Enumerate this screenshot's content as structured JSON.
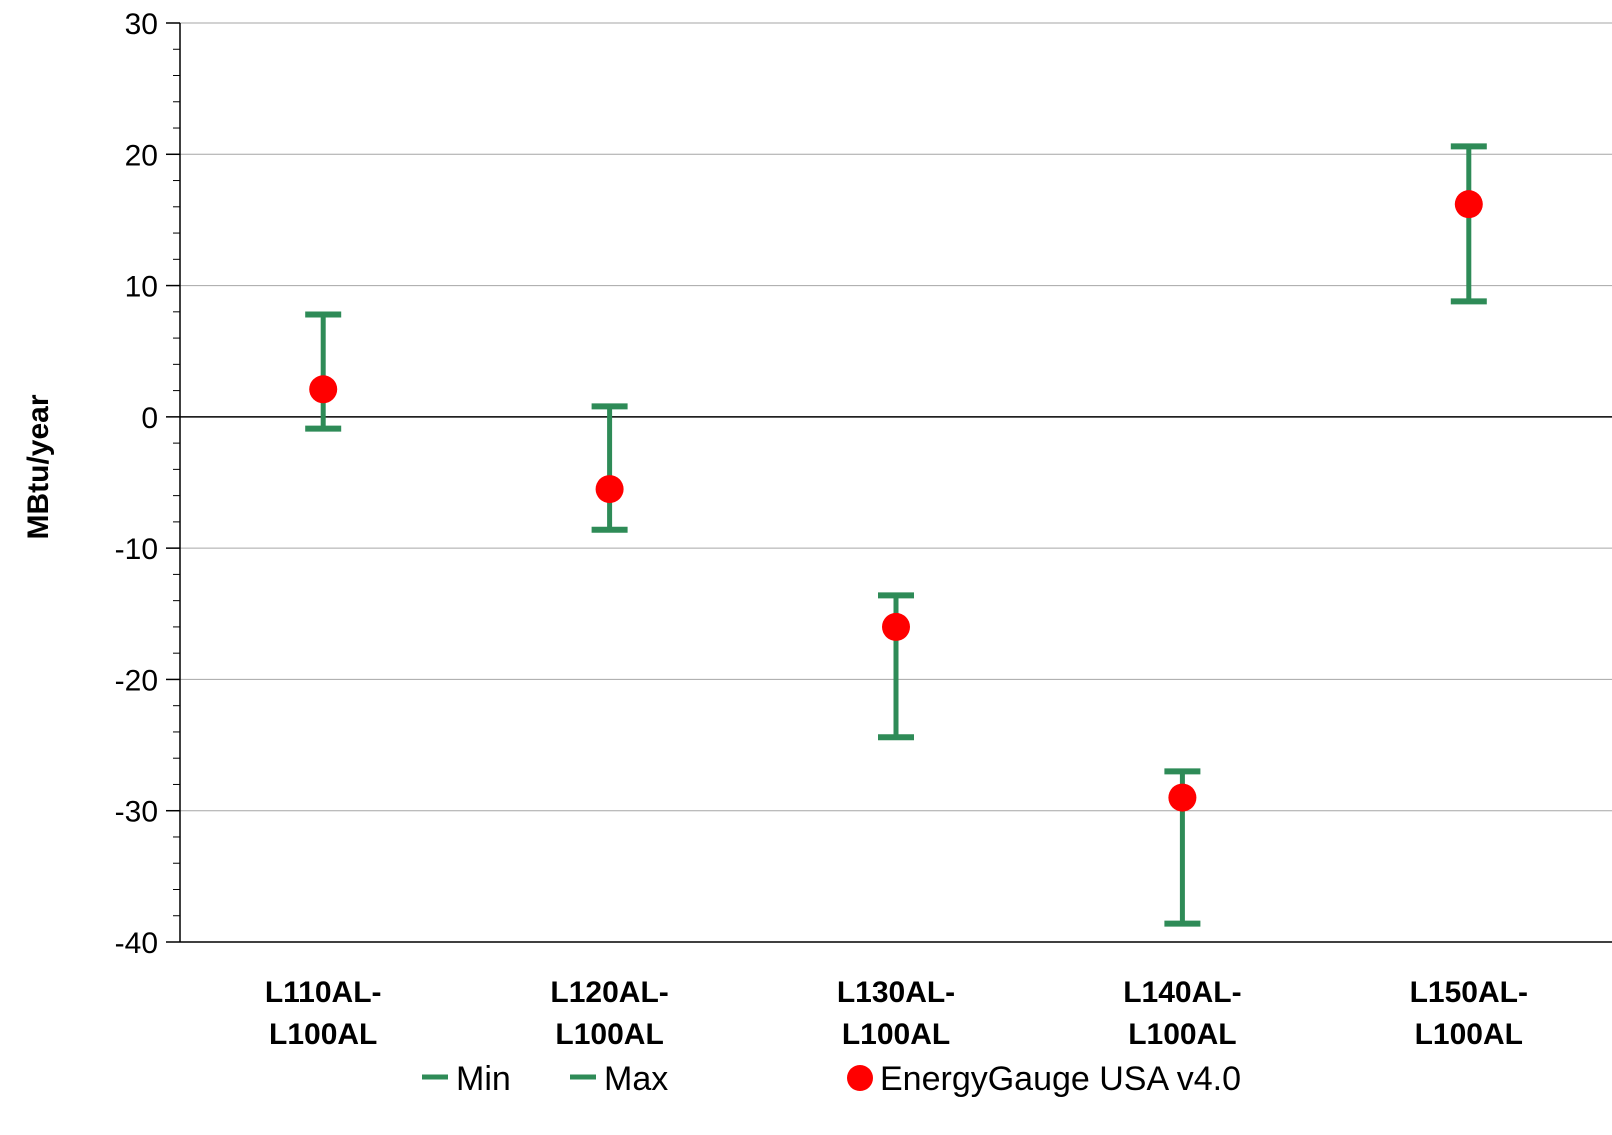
{
  "chart_data": {
    "type": "errorbar",
    "title": "",
    "xlabel": "",
    "ylabel": "MBtu/year",
    "ylim": [
      -40,
      30
    ],
    "yticks": [
      30,
      20,
      10,
      0,
      -10,
      -20,
      -30,
      -40
    ],
    "grid": true,
    "legend_position": "bottom",
    "categories": [
      [
        "L110AL-",
        "L100AL"
      ],
      [
        "L120AL-",
        "L100AL"
      ],
      [
        "L130AL-",
        "L100AL"
      ],
      [
        "L140AL-",
        "L100AL"
      ],
      [
        "L150AL-",
        "L100AL"
      ]
    ],
    "series": [
      {
        "name": "Min",
        "values": [
          -0.9,
          -8.6,
          -24.4,
          -38.6,
          8.8
        ]
      },
      {
        "name": "Max",
        "values": [
          7.8,
          0.8,
          -13.6,
          -27.0,
          20.6
        ]
      },
      {
        "name": "EnergyGauge USA v4.0",
        "values": [
          2.1,
          -5.5,
          -16.0,
          -29.0,
          16.2
        ]
      }
    ],
    "colors": {
      "range": "#2e8b57",
      "point": "#ff0000",
      "grid": "#a6a6a6",
      "axis": "#000000"
    }
  }
}
